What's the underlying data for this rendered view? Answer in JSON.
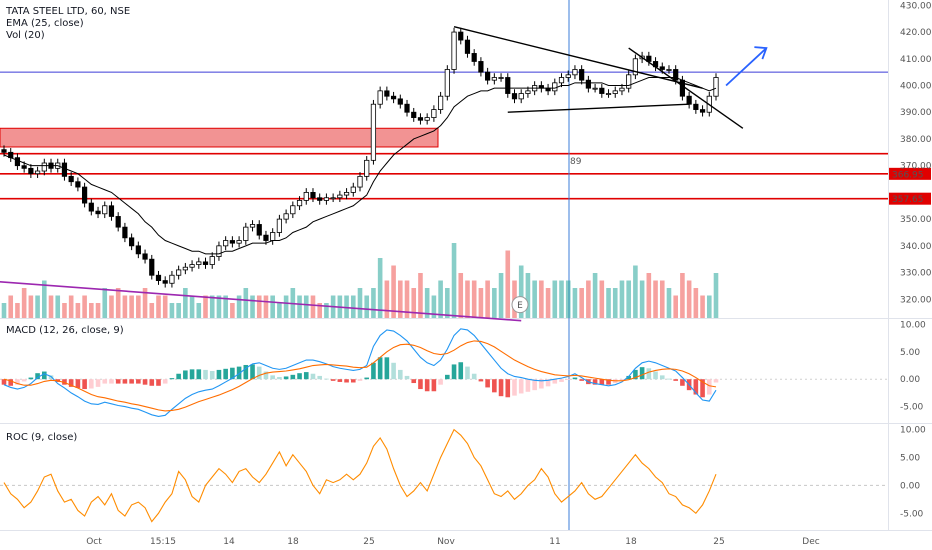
{
  "chart_data": {
    "type": "candlestick",
    "symbol_title": "TATA STEEL LTD, 60, NSE",
    "indicators_main": [
      "EMA (25, close)",
      "Vol (20)"
    ],
    "x_tick_labels": [
      "Oct",
      "15:15",
      "14",
      "18",
      "25",
      "Nov",
      "11",
      "18",
      "25",
      "Dec"
    ],
    "price_axis": {
      "ticks": [
        "430.00",
        "420.00",
        "410.00",
        "400.00",
        "390.00",
        "380.00",
        "370.00",
        "350.00",
        "340.00",
        "330.00",
        "320.00"
      ],
      "range": [
        313,
        432
      ]
    },
    "price_levels": [
      {
        "label": "366.95",
        "value": 366.95,
        "color": "#e00000"
      },
      {
        "label": "357.65",
        "value": 357.65,
        "color": "#e00000"
      },
      {
        "label": "",
        "value": 374.5,
        "color": "#e00000"
      },
      {
        "label": "",
        "value": 405.0,
        "color": "#3b3bd6"
      }
    ],
    "supply_zone": {
      "low": 377.0,
      "high": 384.0,
      "color": "#f08080"
    },
    "vertical_marker_label": "89",
    "event_marker": "E",
    "close_series": [
      375,
      373,
      370,
      369,
      367,
      368,
      371,
      369,
      371,
      366,
      364,
      362,
      356,
      353,
      352,
      355,
      351,
      347,
      343,
      340,
      337,
      335,
      329,
      327,
      326,
      329,
      331,
      332,
      333,
      334,
      333,
      336,
      340,
      342,
      341,
      342,
      347,
      348,
      344,
      342,
      345,
      350,
      352,
      355,
      357,
      360,
      358,
      357,
      358,
      358,
      359,
      360,
      362,
      366,
      372,
      393,
      398,
      396,
      395,
      393,
      390,
      388,
      387,
      388,
      391,
      396,
      406,
      420,
      417,
      412,
      409,
      405,
      402,
      403,
      403,
      397,
      395,
      397,
      398,
      400,
      399,
      398,
      401,
      403,
      404,
      406,
      402,
      399,
      399,
      397,
      397,
      398,
      399,
      404,
      410,
      411,
      409,
      407,
      406,
      406,
      402,
      396,
      393,
      391,
      390,
      396,
      403
    ],
    "ema_series": [
      374,
      373,
      372,
      371,
      370,
      370,
      370,
      370,
      370,
      369,
      368,
      367,
      365,
      363,
      362,
      361,
      360,
      358,
      356,
      354,
      352,
      349,
      347,
      344,
      342,
      341,
      340,
      339,
      338,
      338,
      337,
      337,
      337,
      338,
      338,
      339,
      340,
      341,
      341,
      341,
      342,
      342,
      343,
      345,
      346,
      347,
      349,
      350,
      351,
      352,
      353,
      354,
      355,
      357,
      359,
      364,
      368,
      371,
      374,
      376,
      378,
      380,
      381,
      382,
      383,
      385,
      388,
      392,
      394,
      396,
      397,
      398,
      398,
      399,
      399,
      399,
      399,
      399,
      399,
      399,
      399,
      399,
      399,
      400,
      400,
      401,
      401,
      401,
      401,
      401,
      400,
      400,
      400,
      400,
      401,
      402,
      403,
      403,
      403,
      403,
      403,
      402,
      401,
      400,
      399,
      398,
      399
    ],
    "volume_relative": [
      0.2,
      0.3,
      0.2,
      0.4,
      0.3,
      0.3,
      0.5,
      0.3,
      0.3,
      0.2,
      0.3,
      0.2,
      0.3,
      0.2,
      0.2,
      0.4,
      0.3,
      0.4,
      0.3,
      0.3,
      0.3,
      0.4,
      0.2,
      0.3,
      0.3,
      0.2,
      0.2,
      0.4,
      0.3,
      0.2,
      0.3,
      0.3,
      0.3,
      0.3,
      0.2,
      0.3,
      0.4,
      0.3,
      0.3,
      0.3,
      0.3,
      0.2,
      0.3,
      0.4,
      0.3,
      0.3,
      0.3,
      0.2,
      0.2,
      0.3,
      0.3,
      0.3,
      0.3,
      0.4,
      0.3,
      0.4,
      0.8,
      0.5,
      0.7,
      0.5,
      0.5,
      0.4,
      0.6,
      0.4,
      0.3,
      0.5,
      0.4,
      1.0,
      0.6,
      0.5,
      0.5,
      0.4,
      0.5,
      0.4,
      0.6,
      0.9,
      0.5,
      0.7,
      0.6,
      0.5,
      0.5,
      0.4,
      0.5,
      0.5,
      0.5,
      0.4,
      0.4,
      0.5,
      0.6,
      0.5,
      0.4,
      0.4,
      0.5,
      0.5,
      0.7,
      0.5,
      0.6,
      0.5,
      0.5,
      0.4,
      0.3,
      0.6,
      0.5,
      0.4,
      0.3,
      0.3,
      0.6
    ],
    "macd_panel": {
      "title": "MACD (12, 26, close, 9)",
      "ticks": [
        "10.00",
        "5.00",
        "0.00",
        "-5.00"
      ],
      "range": [
        -8,
        11
      ],
      "macd": [
        -1,
        -1.5,
        -1.8,
        -1.5,
        -0.8,
        0.3,
        1.0,
        0.5,
        -0.8,
        -1.6,
        -2.5,
        -3.2,
        -4.0,
        -4.5,
        -4.6,
        -4.2,
        -4.5,
        -4.8,
        -5.0,
        -5.3,
        -5.5,
        -6.0,
        -6.5,
        -6.8,
        -6.6,
        -5.5,
        -4.5,
        -3.5,
        -2.8,
        -2.3,
        -2.0,
        -1.8,
        -1.2,
        -0.5,
        0.2,
        1.0,
        2.0,
        2.8,
        3.0,
        2.5,
        2.0,
        1.8,
        2.0,
        2.5,
        3.0,
        3.5,
        3.5,
        3.2,
        2.8,
        2.3,
        2.0,
        1.8,
        1.6,
        1.8,
        2.5,
        6.0,
        8.0,
        9.0,
        8.8,
        8.0,
        7.0,
        5.5,
        4.0,
        3.0,
        2.5,
        3.5,
        5.5,
        8.0,
        9.2,
        9.0,
        8.0,
        6.5,
        5.0,
        3.5,
        2.0,
        1.0,
        0.5,
        0.3,
        0.0,
        -0.2,
        -0.3,
        -0.2,
        0.0,
        0.2,
        0.5,
        1.0,
        0.3,
        -0.5,
        -0.8,
        -1.0,
        -1.2,
        -1.0,
        -0.5,
        0.5,
        2.0,
        3.0,
        3.3,
        3.0,
        2.5,
        2.0,
        1.5,
        0.3,
        -1.0,
        -2.5,
        -3.8,
        -4.0,
        -2.0
      ],
      "signal": [
        0,
        -0.3,
        -0.8,
        -1.1,
        -1.1,
        -0.8,
        -0.4,
        -0.2,
        -0.3,
        -0.6,
        -1.1,
        -1.6,
        -2.2,
        -2.8,
        -3.2,
        -3.4,
        -3.7,
        -4.0,
        -4.2,
        -4.5,
        -4.7,
        -5.0,
        -5.3,
        -5.6,
        -5.8,
        -5.7,
        -5.5,
        -5.1,
        -4.6,
        -4.1,
        -3.7,
        -3.3,
        -2.9,
        -2.4,
        -1.9,
        -1.3,
        -0.6,
        0.1,
        0.7,
        1.1,
        1.3,
        1.4,
        1.5,
        1.7,
        1.9,
        2.2,
        2.5,
        2.6,
        2.7,
        2.6,
        2.5,
        2.4,
        2.2,
        2.1,
        2.2,
        3.0,
        4.0,
        5.0,
        5.8,
        6.3,
        6.4,
        6.2,
        5.8,
        5.2,
        4.7,
        4.5,
        4.7,
        5.3,
        6.1,
        6.7,
        7.0,
        6.9,
        6.5,
        5.9,
        5.1,
        4.3,
        3.5,
        2.9,
        2.3,
        1.8,
        1.4,
        1.1,
        0.8,
        0.7,
        0.6,
        0.7,
        0.6,
        0.4,
        0.2,
        0.0,
        -0.2,
        -0.3,
        -0.3,
        -0.1,
        0.3,
        0.8,
        1.3,
        1.6,
        1.8,
        1.9,
        1.8,
        1.5,
        1.0,
        0.3,
        -0.5,
        -1.2,
        -1.4
      ]
    },
    "roc_panel": {
      "title": "ROC (9, close)",
      "ticks": [
        "10.00",
        "5.00",
        "0.00",
        "-5.00"
      ],
      "range": [
        -8,
        11
      ],
      "values": [
        0.5,
        -1.5,
        -2.5,
        -4.0,
        -3.0,
        -1.0,
        1.5,
        2.0,
        -1.0,
        -3.0,
        -2.5,
        -4.5,
        -5.5,
        -3.0,
        -2.0,
        -3.5,
        -1.5,
        -4.5,
        -5.5,
        -3.5,
        -3.0,
        -4.0,
        -6.5,
        -5.0,
        -3.0,
        -1.5,
        2.5,
        1.0,
        -2.0,
        -3.0,
        0.0,
        1.5,
        3.0,
        2.0,
        0.5,
        2.5,
        3.0,
        1.5,
        0.5,
        2.0,
        4.0,
        6.0,
        3.5,
        5.5,
        4.0,
        2.5,
        0.0,
        -1.5,
        1.0,
        0.5,
        1.0,
        2.0,
        1.0,
        2.0,
        4.0,
        7.0,
        8.5,
        6.5,
        3.0,
        0.0,
        -2.0,
        -1.0,
        0.5,
        -1.0,
        2.0,
        5.0,
        7.5,
        10.0,
        9.0,
        7.5,
        5.0,
        3.5,
        1.0,
        -1.5,
        -2.0,
        -1.0,
        -2.5,
        -1.5,
        0.0,
        1.0,
        3.0,
        1.5,
        -1.5,
        -3.0,
        -2.0,
        -1.0,
        0.5,
        -1.5,
        -2.5,
        -2.0,
        -0.5,
        1.0,
        2.5,
        4.0,
        5.5,
        4.0,
        3.0,
        1.5,
        0.5,
        -1.5,
        -2.0,
        -3.5,
        -4.0,
        -5.0,
        -3.5,
        -1.0,
        2.0
      ]
    },
    "colors": {
      "up": "#26a69a",
      "down": "#ef5350",
      "candle": "#000000",
      "ema": "#000000",
      "macd": "#2196f3",
      "signal": "#ff6d00",
      "roc": "#ff8c00",
      "fall_trendline": "#9c27b0",
      "arrow": "#2962ff",
      "vline": "#3b7dd8"
    }
  }
}
